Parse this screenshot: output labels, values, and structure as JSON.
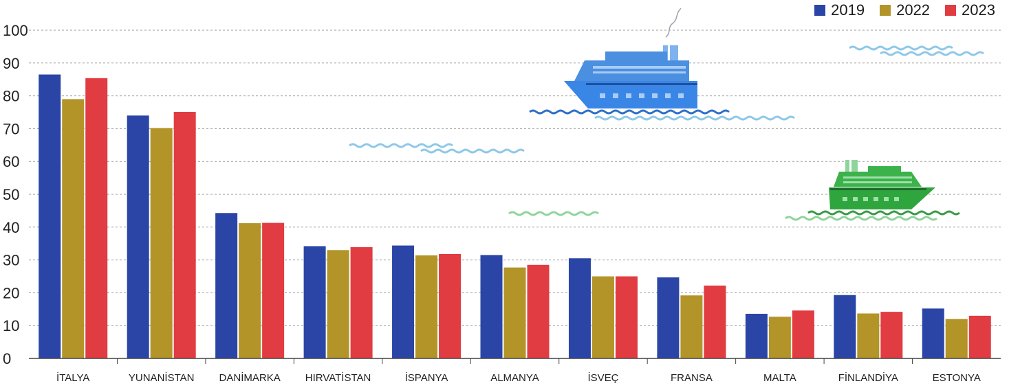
{
  "chart_data": {
    "type": "bar",
    "categories": [
      "İTALYA",
      "YUNANİSTAN",
      "DANİMARKA",
      "HIRVATİSTAN",
      "İSPANYA",
      "ALMANYA",
      "İSVEÇ",
      "FRANSA",
      "MALTA",
      "FİNLANDİYA",
      "ESTONYA"
    ],
    "series": [
      {
        "name": "2019",
        "color": "#2a45a5",
        "values": [
          86.5,
          74,
          44.3,
          34.2,
          34.4,
          31.5,
          30.5,
          24.7,
          13.6,
          19.3,
          15.2
        ]
      },
      {
        "name": "2022",
        "color": "#b39428",
        "values": [
          79,
          70.2,
          41.2,
          33,
          31.4,
          27.7,
          25,
          19.2,
          12.7,
          13.7,
          12
        ]
      },
      {
        "name": "2023",
        "color": "#e03c41",
        "values": [
          85.4,
          75.1,
          41.3,
          33.9,
          31.8,
          28.5,
          25,
          22.2,
          14.6,
          14.2,
          13
        ]
      }
    ],
    "yticks": [
      0,
      10,
      20,
      30,
      40,
      50,
      60,
      70,
      80,
      90,
      100
    ],
    "ylim": [
      0,
      100
    ],
    "grid": true,
    "legend_position": "top-right",
    "decorations": [
      "blue-cruise-ship",
      "green-ferry",
      "waves"
    ]
  }
}
